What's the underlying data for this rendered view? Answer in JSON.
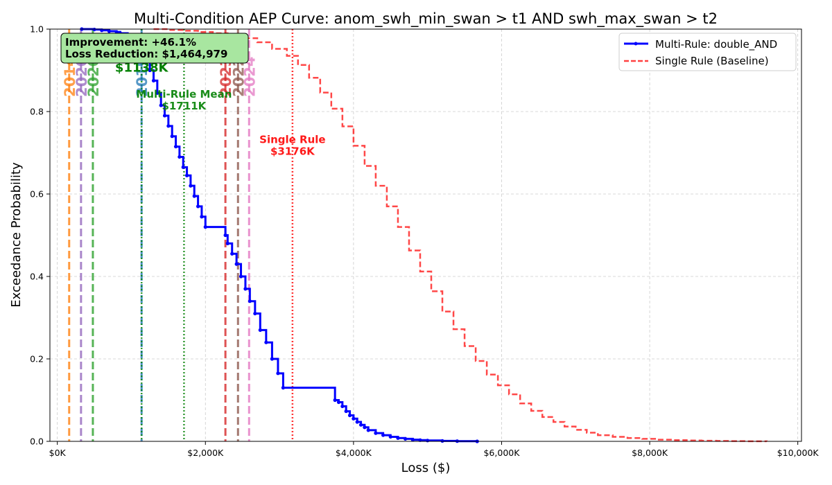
{
  "chart_data": {
    "type": "line",
    "title": "Multi-Condition AEP Curve: anom_swh_min_swan > t1 AND swh_max_swan > t2",
    "xlabel": "Loss ($)",
    "ylabel": "Exceedance Probability",
    "xlim": [
      -100,
      10050
    ],
    "ylim": [
      0,
      1.0
    ],
    "x_ticks": [
      0,
      2000,
      4000,
      6000,
      8000,
      10000
    ],
    "x_tick_labels": [
      "$0K",
      "$2,000K",
      "$4,000K",
      "$6,000K",
      "$8,000K",
      "$10,000K"
    ],
    "y_ticks": [
      0.0,
      0.2,
      0.4,
      0.6,
      0.8,
      1.0
    ],
    "y_tick_labels": [
      "0.0",
      "0.2",
      "0.4",
      "0.6",
      "0.8",
      "1.0"
    ],
    "grid": true,
    "legend_position": "top-right",
    "series": [
      {
        "name": "Multi-Rule: double_AND",
        "color": "#0000ff",
        "style": "solid-step-markers",
        "x": [
          330,
          500,
          600,
          700,
          800,
          850,
          950,
          1000,
          1050,
          1100,
          1150,
          1200,
          1250,
          1300,
          1350,
          1400,
          1450,
          1500,
          1550,
          1600,
          1650,
          1700,
          1750,
          1800,
          1850,
          1900,
          1950,
          2000,
          2270,
          2300,
          2360,
          2420,
          2480,
          2540,
          2600,
          2670,
          2740,
          2820,
          2900,
          2980,
          3050,
          3750,
          3800,
          3850,
          3900,
          3950,
          4000,
          4050,
          4100,
          4150,
          4200,
          4300,
          4400,
          4500,
          4600,
          4700,
          4800,
          4900,
          5000,
          5200,
          5400,
          5670
        ],
        "y": [
          1.0,
          0.999,
          0.997,
          0.995,
          0.993,
          0.99,
          0.986,
          0.98,
          0.97,
          0.96,
          0.945,
          0.925,
          0.9,
          0.875,
          0.845,
          0.815,
          0.79,
          0.765,
          0.74,
          0.715,
          0.69,
          0.665,
          0.645,
          0.62,
          0.595,
          0.57,
          0.545,
          0.52,
          0.5,
          0.48,
          0.455,
          0.43,
          0.4,
          0.37,
          0.34,
          0.31,
          0.27,
          0.24,
          0.2,
          0.165,
          0.13,
          0.1,
          0.095,
          0.085,
          0.073,
          0.063,
          0.055,
          0.047,
          0.04,
          0.034,
          0.027,
          0.02,
          0.015,
          0.011,
          0.008,
          0.006,
          0.004,
          0.003,
          0.002,
          0.001,
          0.0005,
          0.0
        ]
      },
      {
        "name": "Single Rule (Baseline)",
        "color": "#ff0000",
        "style": "dashed-step",
        "x": [
          1300,
          1500,
          1700,
          1900,
          2100,
          2300,
          2500,
          2700,
          2900,
          3100,
          3250,
          3400,
          3550,
          3700,
          3850,
          4000,
          4150,
          4300,
          4450,
          4600,
          4750,
          4900,
          5050,
          5200,
          5350,
          5500,
          5650,
          5800,
          5950,
          6100,
          6250,
          6400,
          6550,
          6700,
          6850,
          7000,
          7150,
          7300,
          7500,
          7700,
          7900,
          8100,
          8300,
          8500,
          8700,
          8900,
          9100,
          9300,
          9580
        ],
        "y": [
          1.0,
          0.998,
          0.996,
          0.993,
          0.99,
          0.985,
          0.978,
          0.968,
          0.952,
          0.935,
          0.913,
          0.882,
          0.846,
          0.807,
          0.764,
          0.717,
          0.668,
          0.62,
          0.57,
          0.52,
          0.463,
          0.412,
          0.364,
          0.315,
          0.272,
          0.231,
          0.195,
          0.162,
          0.136,
          0.114,
          0.092,
          0.074,
          0.059,
          0.047,
          0.036,
          0.028,
          0.021,
          0.015,
          0.011,
          0.008,
          0.006,
          0.004,
          0.003,
          0.002,
          0.0015,
          0.001,
          0.0006,
          0.0003,
          0.0
        ]
      }
    ],
    "vertical_lines": [
      {
        "x": 160,
        "color": "#ff7f0e",
        "label": "2014"
      },
      {
        "x": 320,
        "color": "#9467bd",
        "label": "2020"
      },
      {
        "x": 480,
        "color": "#2ca02c",
        "label": "2020"
      },
      {
        "x": 1138,
        "color": "#1f77b4",
        "label": "2019"
      },
      {
        "x": 2270,
        "color": "#d62728",
        "label": "2023"
      },
      {
        "x": 2440,
        "color": "#8c564b",
        "label": "2022"
      },
      {
        "x": 2590,
        "color": "#e377c2",
        "label": "2024"
      }
    ],
    "reference_lines": [
      {
        "x": 1138,
        "color": "#008000",
        "label_lines": [
          "Median",
          "$1138K"
        ],
        "label_y": 0.92
      },
      {
        "x": 1711,
        "color": "#008000",
        "label_lines": [
          "Multi-Rule Mean",
          "$1711K"
        ],
        "label_y": 0.83
      },
      {
        "x": 3176,
        "color": "#ff0000",
        "label_lines": [
          "Single Rule",
          "$3176K"
        ],
        "label_y": 0.72
      }
    ],
    "annotation_box": {
      "lines": [
        "Improvement: +46.1%",
        "Loss Reduction: $1,464,979"
      ],
      "background": "#a8e6a0"
    }
  }
}
